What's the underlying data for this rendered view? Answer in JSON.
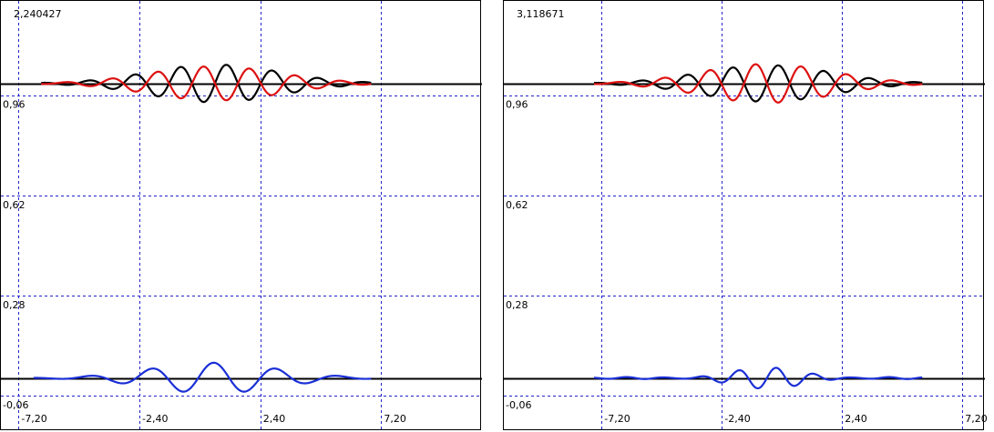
{
  "colors": {
    "grid": "#2222cc",
    "axis": "#000000",
    "series_black": "#000000",
    "series_red": "#dd1111",
    "series_blue": "#1a2fd6"
  },
  "chart_data": [
    {
      "type": "line",
      "readout": "2,240427",
      "x_ticks": [
        -7.2,
        -2.4,
        2.4,
        7.2
      ],
      "x_tick_labels": [
        "-7,20",
        "-2,40",
        "2,40",
        "7,20"
      ],
      "y_ticks": [
        0.96,
        0.62,
        0.28,
        -0.06
      ],
      "y_tick_labels": [
        "0,96",
        "0,62",
        "0,28",
        "-0,06"
      ],
      "xlim": [
        -7.9,
        11.2
      ],
      "ylim": [
        -0.18,
        1.28
      ],
      "baselines": [
        1.0,
        0.0
      ],
      "grid": true,
      "series": [
        {
          "color": "black",
          "type": "packet",
          "offset": 1.0,
          "x0": 0.6,
          "amp": 0.064,
          "sigma": 2.6,
          "k": 3.45,
          "phase": 0.0,
          "xmin": -6.3,
          "xmax": 6.8
        },
        {
          "color": "red",
          "type": "packet",
          "offset": 1.0,
          "x0": 0.6,
          "amp": 0.058,
          "sigma": 2.6,
          "k": 3.45,
          "phase": 3.1416,
          "xmin": -6.3,
          "xmax": 6.8
        },
        {
          "color": "blue",
          "type": "packet",
          "offset": 0.0,
          "x0": 0.55,
          "amp": 0.052,
          "sigma": 2.5,
          "k": 2.55,
          "phase": 1.5708,
          "xmin": -6.6,
          "xmax": 6.8
        }
      ]
    },
    {
      "type": "line",
      "readout": "3,118671",
      "x_ticks": [
        -7.2,
        -2.4,
        2.4,
        7.2
      ],
      "x_tick_labels": [
        "-7,20",
        "-2,40",
        "2,40",
        "7,20"
      ],
      "y_ticks": [
        0.96,
        0.62,
        0.28,
        -0.06
      ],
      "y_tick_labels": [
        "0,96",
        "0,62",
        "0,28",
        "-0,06"
      ],
      "xlim": [
        -11.1,
        8.1
      ],
      "ylim": [
        -0.18,
        1.28
      ],
      "baselines": [
        1.0,
        0.0
      ],
      "grid": true,
      "series": [
        {
          "color": "black",
          "type": "packet",
          "offset": 1.0,
          "x0": -0.6,
          "amp": 0.062,
          "sigma": 2.6,
          "k": 3.45,
          "phase": 0.0,
          "xmin": -7.5,
          "xmax": 5.6
        },
        {
          "color": "red",
          "type": "packet",
          "offset": 1.0,
          "x0": -0.6,
          "amp": 0.066,
          "sigma": 2.6,
          "k": 3.45,
          "phase": 3.1416,
          "xmin": -7.5,
          "xmax": 5.6
        },
        {
          "color": "blue",
          "type": "beat",
          "offset": 0.0,
          "x0": -0.6,
          "amp": 0.02,
          "sigma": 2.8,
          "k": 4.2,
          "beat": 0.9,
          "phase": 0.0,
          "xmin": -7.5,
          "xmax": 5.6
        }
      ]
    }
  ]
}
